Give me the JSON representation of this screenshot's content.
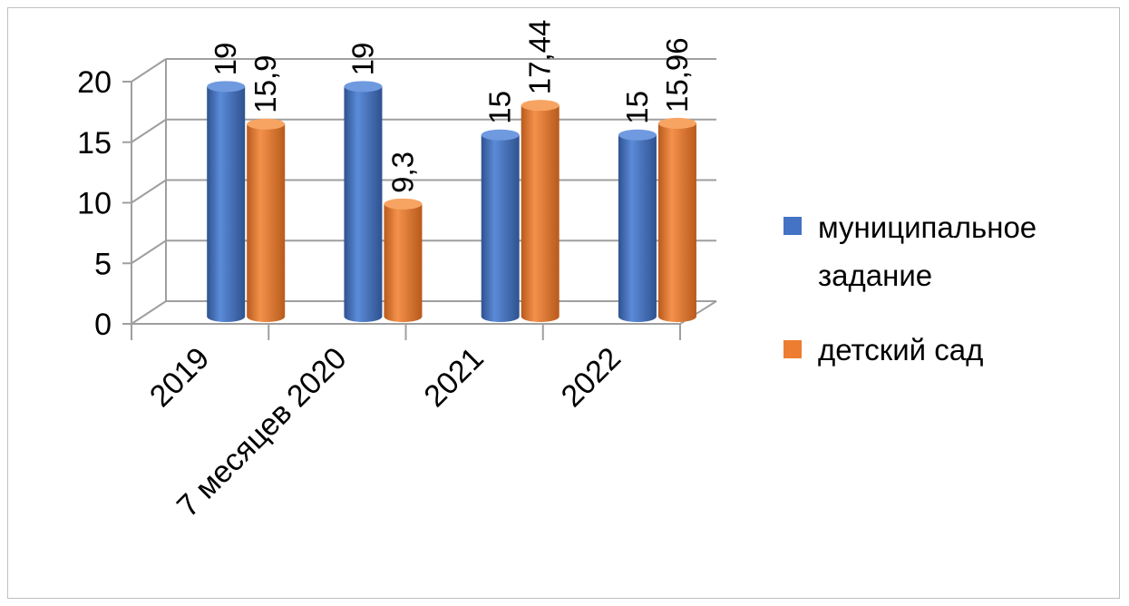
{
  "chart_data": {
    "type": "bar",
    "title": "",
    "xlabel": "",
    "ylabel": "",
    "categories": [
      "2019",
      "7 месяцев 2020",
      "2021",
      "2022"
    ],
    "series": [
      {
        "name": "муниципальное задание",
        "values": [
          19,
          19,
          15,
          15
        ],
        "labels": [
          "19",
          "19",
          "15",
          "15"
        ],
        "color": "#4472C4"
      },
      {
        "name": "детский сад",
        "values": [
          15.9,
          9.3,
          17.44,
          15.96
        ],
        "labels": [
          "15,9",
          "9,3",
          "17,44",
          "15,96"
        ],
        "color": "#ED7D31"
      }
    ],
    "ylim": [
      0,
      20
    ],
    "yticks": [
      0,
      5,
      10,
      15,
      20
    ],
    "ytick_labels": [
      "0",
      "5",
      "10",
      "15",
      "20"
    ],
    "grid": true,
    "legend_position": "right",
    "style": "3d-cylinder"
  },
  "legend": {
    "line1": "муниципальное",
    "line2": "задание",
    "line3": "детский сад"
  }
}
